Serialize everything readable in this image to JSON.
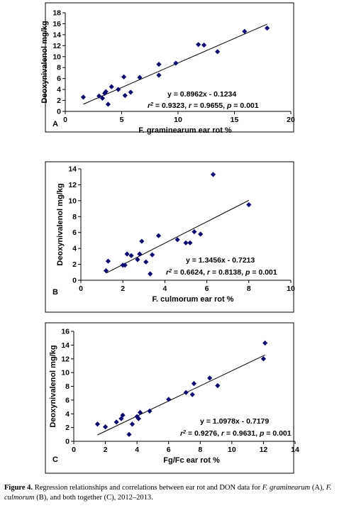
{
  "chart_data": [
    {
      "type": "scatter",
      "panel_label": "A",
      "xlabel": "F. graminearum ear rot %",
      "ylabel": "Deoxynivalenol mg/kg",
      "xlim": [
        0,
        20
      ],
      "ylim": [
        0,
        18
      ],
      "xticks": [
        0,
        5,
        10,
        15,
        20
      ],
      "yticks": [
        0,
        2,
        4,
        6,
        8,
        10,
        12,
        14,
        16,
        18
      ],
      "points": [
        [
          1.6,
          2.6
        ],
        [
          3.0,
          2.8
        ],
        [
          3.3,
          2.4
        ],
        [
          3.5,
          3.3
        ],
        [
          3.6,
          3.6
        ],
        [
          3.8,
          1.3
        ],
        [
          4.1,
          4.5
        ],
        [
          4.7,
          4.0
        ],
        [
          5.2,
          6.3
        ],
        [
          5.3,
          2.9
        ],
        [
          5.8,
          3.5
        ],
        [
          6.6,
          6.2
        ],
        [
          8.3,
          8.6
        ],
        [
          8.3,
          6.6
        ],
        [
          9.8,
          8.8
        ],
        [
          11.8,
          12.2
        ],
        [
          12.3,
          12.1
        ],
        [
          13.5,
          10.9
        ],
        [
          15.9,
          14.6
        ],
        [
          17.9,
          15.2
        ]
      ],
      "fit": {
        "slope": 0.8962,
        "intercept": -0.1234,
        "x_range": [
          1.6,
          17.9
        ]
      },
      "equation": "y = 0.8962x - 0.1234",
      "r2": "0.9323",
      "r": "0.9655",
      "p": "0.001",
      "marker_color": "#0a0a6e",
      "grid": false
    },
    {
      "type": "scatter",
      "panel_label": "B",
      "xlabel": "F. culmorum ear rot %",
      "ylabel": "Deoxynivalenol mg/kg",
      "xlim": [
        0,
        10
      ],
      "ylim": [
        0,
        14
      ],
      "xticks": [
        0,
        2,
        4,
        6,
        8,
        10
      ],
      "yticks": [
        0,
        2,
        4,
        6,
        8,
        10,
        12,
        14
      ],
      "points": [
        [
          1.2,
          1.2
        ],
        [
          1.3,
          2.4
        ],
        [
          2.0,
          1.9
        ],
        [
          2.1,
          1.9
        ],
        [
          2.2,
          3.3
        ],
        [
          2.4,
          3.1
        ],
        [
          2.7,
          2.6
        ],
        [
          2.8,
          3.3
        ],
        [
          2.9,
          4.9
        ],
        [
          3.1,
          2.3
        ],
        [
          3.3,
          0.8
        ],
        [
          3.4,
          3.2
        ],
        [
          3.7,
          5.6
        ],
        [
          4.6,
          5.1
        ],
        [
          5.0,
          4.7
        ],
        [
          5.2,
          4.7
        ],
        [
          5.4,
          6.1
        ],
        [
          5.7,
          5.8
        ],
        [
          6.3,
          13.3
        ],
        [
          8.0,
          9.5
        ]
      ],
      "fit": {
        "slope": 1.3456,
        "intercept": -0.7213,
        "x_range": [
          1.2,
          8.0
        ]
      },
      "equation": "y = 1.3456x - 0.7213",
      "r2": "0.6624",
      "r": "0.8138",
      "p": "0.001",
      "marker_color": "#0a0a6e",
      "grid": false
    },
    {
      "type": "scatter",
      "panel_label": "C",
      "xlabel": "Fg/Fc ear rot %",
      "ylabel": "Deoxynivalenol mg/kg",
      "xlim": [
        0,
        14
      ],
      "ylim": [
        0,
        16
      ],
      "xticks": [
        0,
        2,
        4,
        6,
        8,
        10,
        12,
        14
      ],
      "yticks": [
        0,
        2,
        4,
        6,
        8,
        10,
        12,
        14,
        16
      ],
      "points": [
        [
          1.5,
          2.5
        ],
        [
          2.0,
          2.1
        ],
        [
          2.7,
          2.8
        ],
        [
          3.0,
          3.3
        ],
        [
          3.1,
          3.8
        ],
        [
          3.5,
          1.0
        ],
        [
          3.7,
          2.5
        ],
        [
          4.0,
          3.6
        ],
        [
          4.1,
          3.3
        ],
        [
          4.2,
          4.2
        ],
        [
          4.8,
          4.4
        ],
        [
          6.0,
          6.1
        ],
        [
          7.1,
          7.1
        ],
        [
          7.5,
          6.8
        ],
        [
          7.6,
          8.4
        ],
        [
          8.6,
          9.2
        ],
        [
          9.1,
          8.1
        ],
        [
          12.0,
          12.0
        ],
        [
          12.1,
          14.3
        ]
      ],
      "fit": {
        "slope": 1.0978,
        "intercept": -0.7179,
        "x_range": [
          1.5,
          12.1
        ]
      },
      "equation": "y = 1.0978x - 0.7179",
      "r2": "0.9276",
      "r": "0.9631",
      "p": "0.001",
      "marker_color": "#0a0a6e",
      "grid": false
    }
  ],
  "caption": {
    "prefix": "Figure 4.",
    "text_1": " Regression relationships and correlations between ear rot and DON data for ",
    "species_1": "F. graminearum",
    "label_a": "(A)",
    "sep_1": ", ",
    "species_2": "F. culmorum",
    "label_b": "(B)",
    "text_2": ", and both together ",
    "label_c": "(C)",
    "text_3": ", 2012–2013."
  }
}
